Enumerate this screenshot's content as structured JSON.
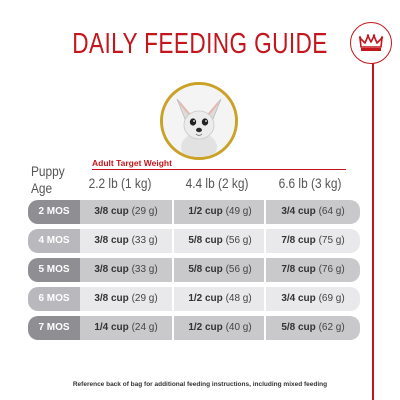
{
  "title": "DAILY FEEDING GUIDE",
  "header": {
    "puppy_age_line1": "Puppy",
    "puppy_age_line2": "Age",
    "adult_target_weight": "Adult Target Weight",
    "weights": [
      "2.2 lb (1 kg)",
      "4.4 lb (2 kg)",
      "6.6 lb (3 kg)"
    ]
  },
  "rows": [
    {
      "age": "2 MOS",
      "cells": [
        {
          "cup": "3/8 cup",
          "grams": "(29 g)"
        },
        {
          "cup": "1/2 cup",
          "grams": "(49 g)"
        },
        {
          "cup": "3/4 cup",
          "grams": "(64 g)"
        }
      ]
    },
    {
      "age": "4 MOS",
      "cells": [
        {
          "cup": "3/8 cup",
          "grams": "(33 g)"
        },
        {
          "cup": "5/8 cup",
          "grams": "(56 g)"
        },
        {
          "cup": "7/8 cup",
          "grams": "(75 g)"
        }
      ]
    },
    {
      "age": "5 MOS",
      "cells": [
        {
          "cup": "3/8 cup",
          "grams": "(33 g)"
        },
        {
          "cup": "5/8 cup",
          "grams": "(56 g)"
        },
        {
          "cup": "7/8 cup",
          "grams": "(76 g)"
        }
      ]
    },
    {
      "age": "6 MOS",
      "cells": [
        {
          "cup": "3/8 cup",
          "grams": "(29 g)"
        },
        {
          "cup": "1/2 cup",
          "grams": "(48 g)"
        },
        {
          "cup": "3/4 cup",
          "grams": "(69 g)"
        }
      ]
    },
    {
      "age": "7 MOS",
      "cells": [
        {
          "cup": "1/4 cup",
          "grams": "(24 g)"
        },
        {
          "cup": "1/2 cup",
          "grams": "(40 g)"
        },
        {
          "cup": "5/8 cup",
          "grams": "(62 g)"
        }
      ]
    }
  ],
  "footer": "Reference back of bag for additional feeding instructions, including mixed feeding",
  "icons": {
    "logo": "crown-logo-icon",
    "photo": "puppy-photo"
  },
  "colors": {
    "brand_red": "#c4161c",
    "gold": "#c9a227"
  }
}
